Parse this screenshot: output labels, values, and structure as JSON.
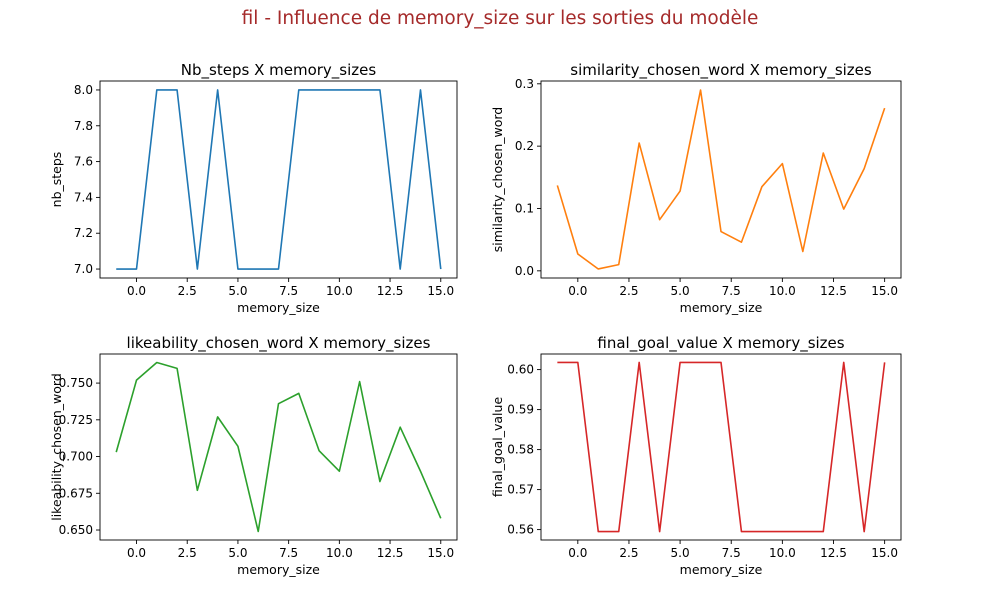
{
  "figure_title": "fil - Influence de memory_size sur les sorties du modèle",
  "chart_data": [
    {
      "type": "line",
      "title": "Nb_steps X memory_sizes",
      "xlabel": "memory_size",
      "ylabel": "nb_steps",
      "color": "#1f77b4",
      "x": [
        -1,
        0,
        1,
        2,
        3,
        4,
        5,
        6,
        7,
        8,
        9,
        10,
        11,
        12,
        13,
        14,
        15
      ],
      "values": [
        7,
        7,
        8,
        8,
        7,
        8,
        7,
        7,
        7,
        8,
        8,
        8,
        8,
        8,
        7,
        8,
        7
      ],
      "xlim": [
        -1.8,
        15.8
      ],
      "ylim": [
        6.95,
        8.05
      ],
      "xticks": [
        0,
        2.5,
        5,
        7.5,
        10,
        12.5,
        15
      ],
      "xtick_labels": [
        "0.0",
        "2.5",
        "5.0",
        "7.5",
        "10.0",
        "12.5",
        "15.0"
      ],
      "yticks": [
        7.0,
        7.2,
        7.4,
        7.6,
        7.8,
        8.0
      ],
      "ytick_labels": [
        "7.0",
        "7.2",
        "7.4",
        "7.6",
        "7.8",
        "8.0"
      ]
    },
    {
      "type": "line",
      "title": "similarity_chosen_word X memory_sizes",
      "xlabel": "memory_size",
      "ylabel": "similarity_chosen_word",
      "color": "#ff7f0e",
      "x": [
        -1,
        0,
        1,
        2,
        3,
        4,
        5,
        6,
        7,
        8,
        9,
        10,
        11,
        12,
        13,
        14,
        15
      ],
      "values": [
        0.137,
        0.027,
        0.003,
        0.01,
        0.205,
        0.082,
        0.128,
        0.29,
        0.063,
        0.046,
        0.135,
        0.172,
        0.031,
        0.189,
        0.099,
        0.164,
        0.261
      ],
      "xlim": [
        -1.8,
        15.8
      ],
      "ylim": [
        -0.0115,
        0.3045
      ],
      "xticks": [
        0,
        2.5,
        5,
        7.5,
        10,
        12.5,
        15
      ],
      "xtick_labels": [
        "0.0",
        "2.5",
        "5.0",
        "7.5",
        "10.0",
        "12.5",
        "15.0"
      ],
      "yticks": [
        0.0,
        0.1,
        0.2,
        0.3
      ],
      "ytick_labels": [
        "0.0",
        "0.1",
        "0.2",
        "0.3"
      ]
    },
    {
      "type": "line",
      "title": "likeability_chosen_word X memory_sizes",
      "xlabel": "memory_size",
      "ylabel": "likeability_chosen_word",
      "color": "#2ca02c",
      "x": [
        -1,
        0,
        1,
        2,
        3,
        4,
        5,
        6,
        7,
        8,
        9,
        10,
        11,
        12,
        13,
        14,
        15
      ],
      "values": [
        0.703,
        0.752,
        0.764,
        0.76,
        0.677,
        0.727,
        0.707,
        0.649,
        0.736,
        0.743,
        0.704,
        0.69,
        0.751,
        0.683,
        0.72,
        0.69,
        0.658
      ],
      "xlim": [
        -1.8,
        15.8
      ],
      "ylim": [
        0.6432,
        0.7698
      ],
      "xticks": [
        0,
        2.5,
        5,
        7.5,
        10,
        12.5,
        15
      ],
      "xtick_labels": [
        "0.0",
        "2.5",
        "5.0",
        "7.5",
        "10.0",
        "12.5",
        "15.0"
      ],
      "yticks": [
        0.65,
        0.675,
        0.7,
        0.725,
        0.75
      ],
      "ytick_labels": [
        "0.650",
        "0.675",
        "0.700",
        "0.725",
        "0.750"
      ]
    },
    {
      "type": "line",
      "title": "final_goal_value X memory_sizes",
      "xlabel": "memory_size",
      "ylabel": "final_goal_value",
      "color": "#d62728",
      "x": [
        -1,
        0,
        1,
        2,
        3,
        4,
        5,
        6,
        7,
        8,
        9,
        10,
        11,
        12,
        13,
        14,
        15
      ],
      "values": [
        0.6018,
        0.6018,
        0.5595,
        0.5595,
        0.6018,
        0.5595,
        0.6018,
        0.6018,
        0.6018,
        0.5595,
        0.5595,
        0.5595,
        0.5595,
        0.5595,
        0.6018,
        0.5595,
        0.6018
      ],
      "xlim": [
        -1.8,
        15.8
      ],
      "ylim": [
        0.5574,
        0.6039
      ],
      "xticks": [
        0,
        2.5,
        5,
        7.5,
        10,
        12.5,
        15
      ],
      "xtick_labels": [
        "0.0",
        "2.5",
        "5.0",
        "7.5",
        "10.0",
        "12.5",
        "15.0"
      ],
      "yticks": [
        0.56,
        0.57,
        0.58,
        0.59,
        0.6
      ],
      "ytick_labels": [
        "0.56",
        "0.57",
        "0.58",
        "0.59",
        "0.60"
      ]
    }
  ]
}
